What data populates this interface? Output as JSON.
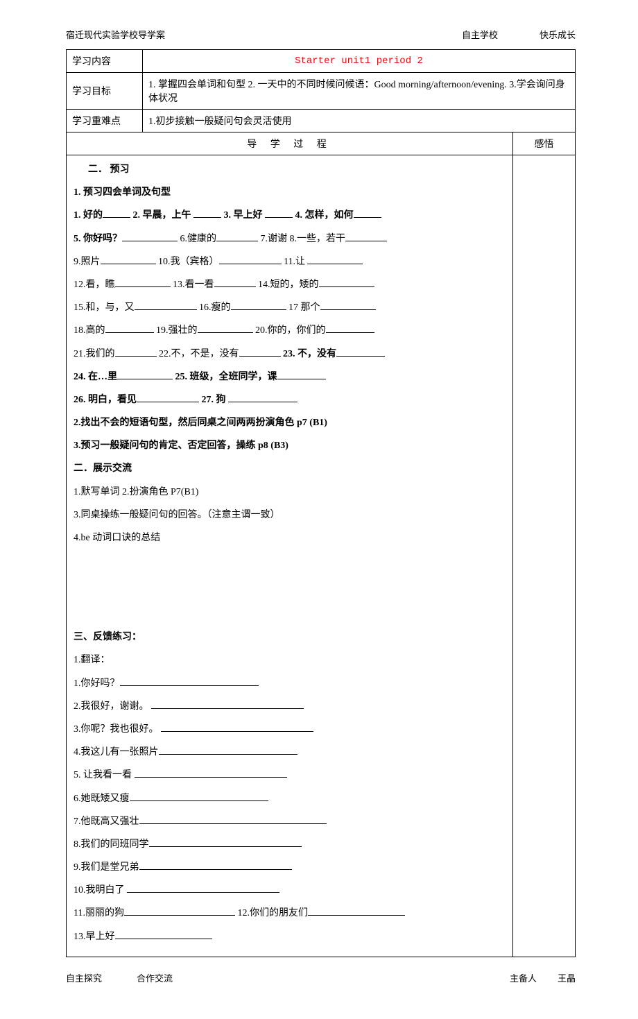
{
  "header": {
    "left": "宿迁现代实验学校导学案",
    "right1": "自主学校",
    "right2": "快乐成长"
  },
  "row1": {
    "label": "学习内容",
    "title": "Starter unit1  period 2"
  },
  "row2": {
    "label": "学习目标",
    "text": "1. 掌握四会单词和句型 2. 一天中的不同时候问候语：Good morning/afternoon/evening. 3.学会询问身体状况"
  },
  "row3": {
    "label": "学习重难点",
    "text": "1.初步接触一般疑问句会灵活使用"
  },
  "row4": {
    "dxgc": "导 学 过 程",
    "ganwu": "感悟"
  },
  "preview": {
    "heading": "二．  预习",
    "sub1": "1. 预习四会单词及句型",
    "v1": "1. 好的",
    "v2": "2. 早晨，上午",
    "v3": "3. 早上好",
    "v4": "4. 怎样，如何",
    "v5": "5. 你好吗？",
    "v6": "6.健康的",
    "v7": "7.谢谢",
    "v8": "8.一些，若干",
    "v9": "9.照片",
    "v10": "10.我（宾格）",
    "v11": "11.让",
    "v12": "12.看，瞧",
    "v13": "13.看一看",
    "v14": "14.短的，矮的",
    "v15": "15.和，与，又",
    "v16": "16.瘦的",
    "v17": "17 那个",
    "v18": "18.高的",
    "v19": "19.强壮的",
    "v20": "20.你的，你们的",
    "v21": "21.我们的",
    "v22": "22.不，不是，没有",
    "v23": "23. 不，没有",
    "v24": "24. 在…里",
    "v25": "25. 班级，全班同学，课",
    "v26": "26. 明白，看见",
    "v27": "27. 狗",
    "sub2": "2.找出不会的短语句型，然后同桌之间两两扮演角色 p7 (B1)",
    "sub3": "3.预习一般疑问句的肯定、否定回答，操练 p8 (B3)"
  },
  "show": {
    "heading": "二．展示交流",
    "i1": "1.默写单词   2.扮演角色 P7(B1)",
    "i2": "3.同桌操练一般疑问句的回答。（注意主谓一致）",
    "i3": "4.be 动词口诀的总结"
  },
  "feedback": {
    "heading": "三、反馈练习：",
    "sub": "1.翻译：",
    "t1": "1.你好吗？",
    "t2": "2.我很好，谢谢。",
    "t3": "3.你呢？我也很好。",
    "t4": "4.我这儿有一张照片",
    "t5": "5. 让我看一看",
    "t6": "6.她既矮又瘦",
    "t7": "7.他既高又强壮",
    "t8": "8.我们的同班同学",
    "t9": "9.我们是堂兄弟",
    "t10": "10.我明白了",
    "t11": "11.丽丽的狗",
    "t12": "12.你们的朋友们",
    "t13": "13.早上好"
  },
  "footer": {
    "l1": "自主探究",
    "l2": "合作交流",
    "r1": "主备人",
    "r2": "王晶"
  }
}
